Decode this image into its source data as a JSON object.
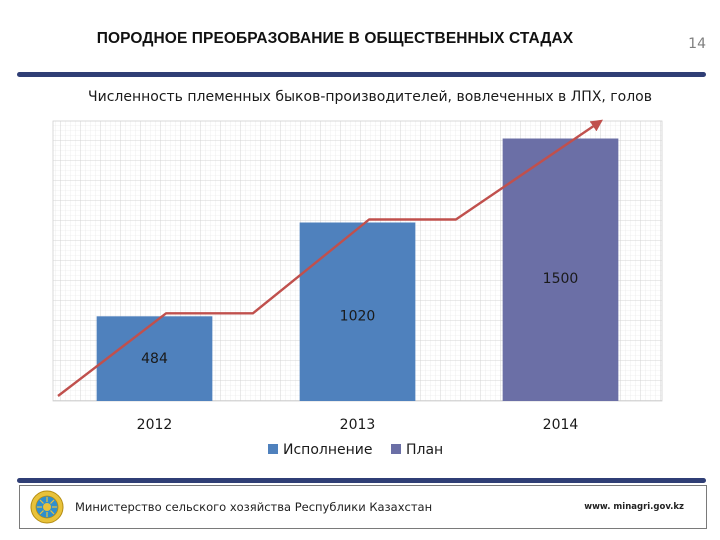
{
  "slide": {
    "title": "ПОРОДНОЕ ПРЕОБРАЗОВАНИЕ В ОБЩЕСТВЕННЫХ СТАДАХ",
    "number": "14"
  },
  "footer": {
    "ministry": "Министерство сельского хозяйства Республики Казахстан",
    "website": "www. minagri.gov.kz",
    "emblem_icon": "kazakhstan-emblem-icon"
  },
  "colors": {
    "rule": "#2f3e75",
    "bar_execution": "#4f81bd",
    "bar_plan": "#6b6fa6",
    "trend_arrow": "#c0504d"
  },
  "chart_data": {
    "type": "bar",
    "title": "Численность племенных быков-производителей, вовлеченных в ЛПХ, голов",
    "categories": [
      "2012",
      "2013",
      "2014"
    ],
    "values": [
      484,
      1020,
      1500
    ],
    "data_labels": [
      "484",
      "1020",
      "1500"
    ],
    "bar_series": [
      "Исполнение",
      "Исполнение",
      "План"
    ],
    "series": [
      {
        "name": "Исполнение",
        "color": "#4f81bd"
      },
      {
        "name": "План",
        "color": "#6b6fa6"
      }
    ],
    "ylim": [
      0,
      1600
    ],
    "grid": true,
    "legend": "bottom",
    "trend_arrow": true
  }
}
